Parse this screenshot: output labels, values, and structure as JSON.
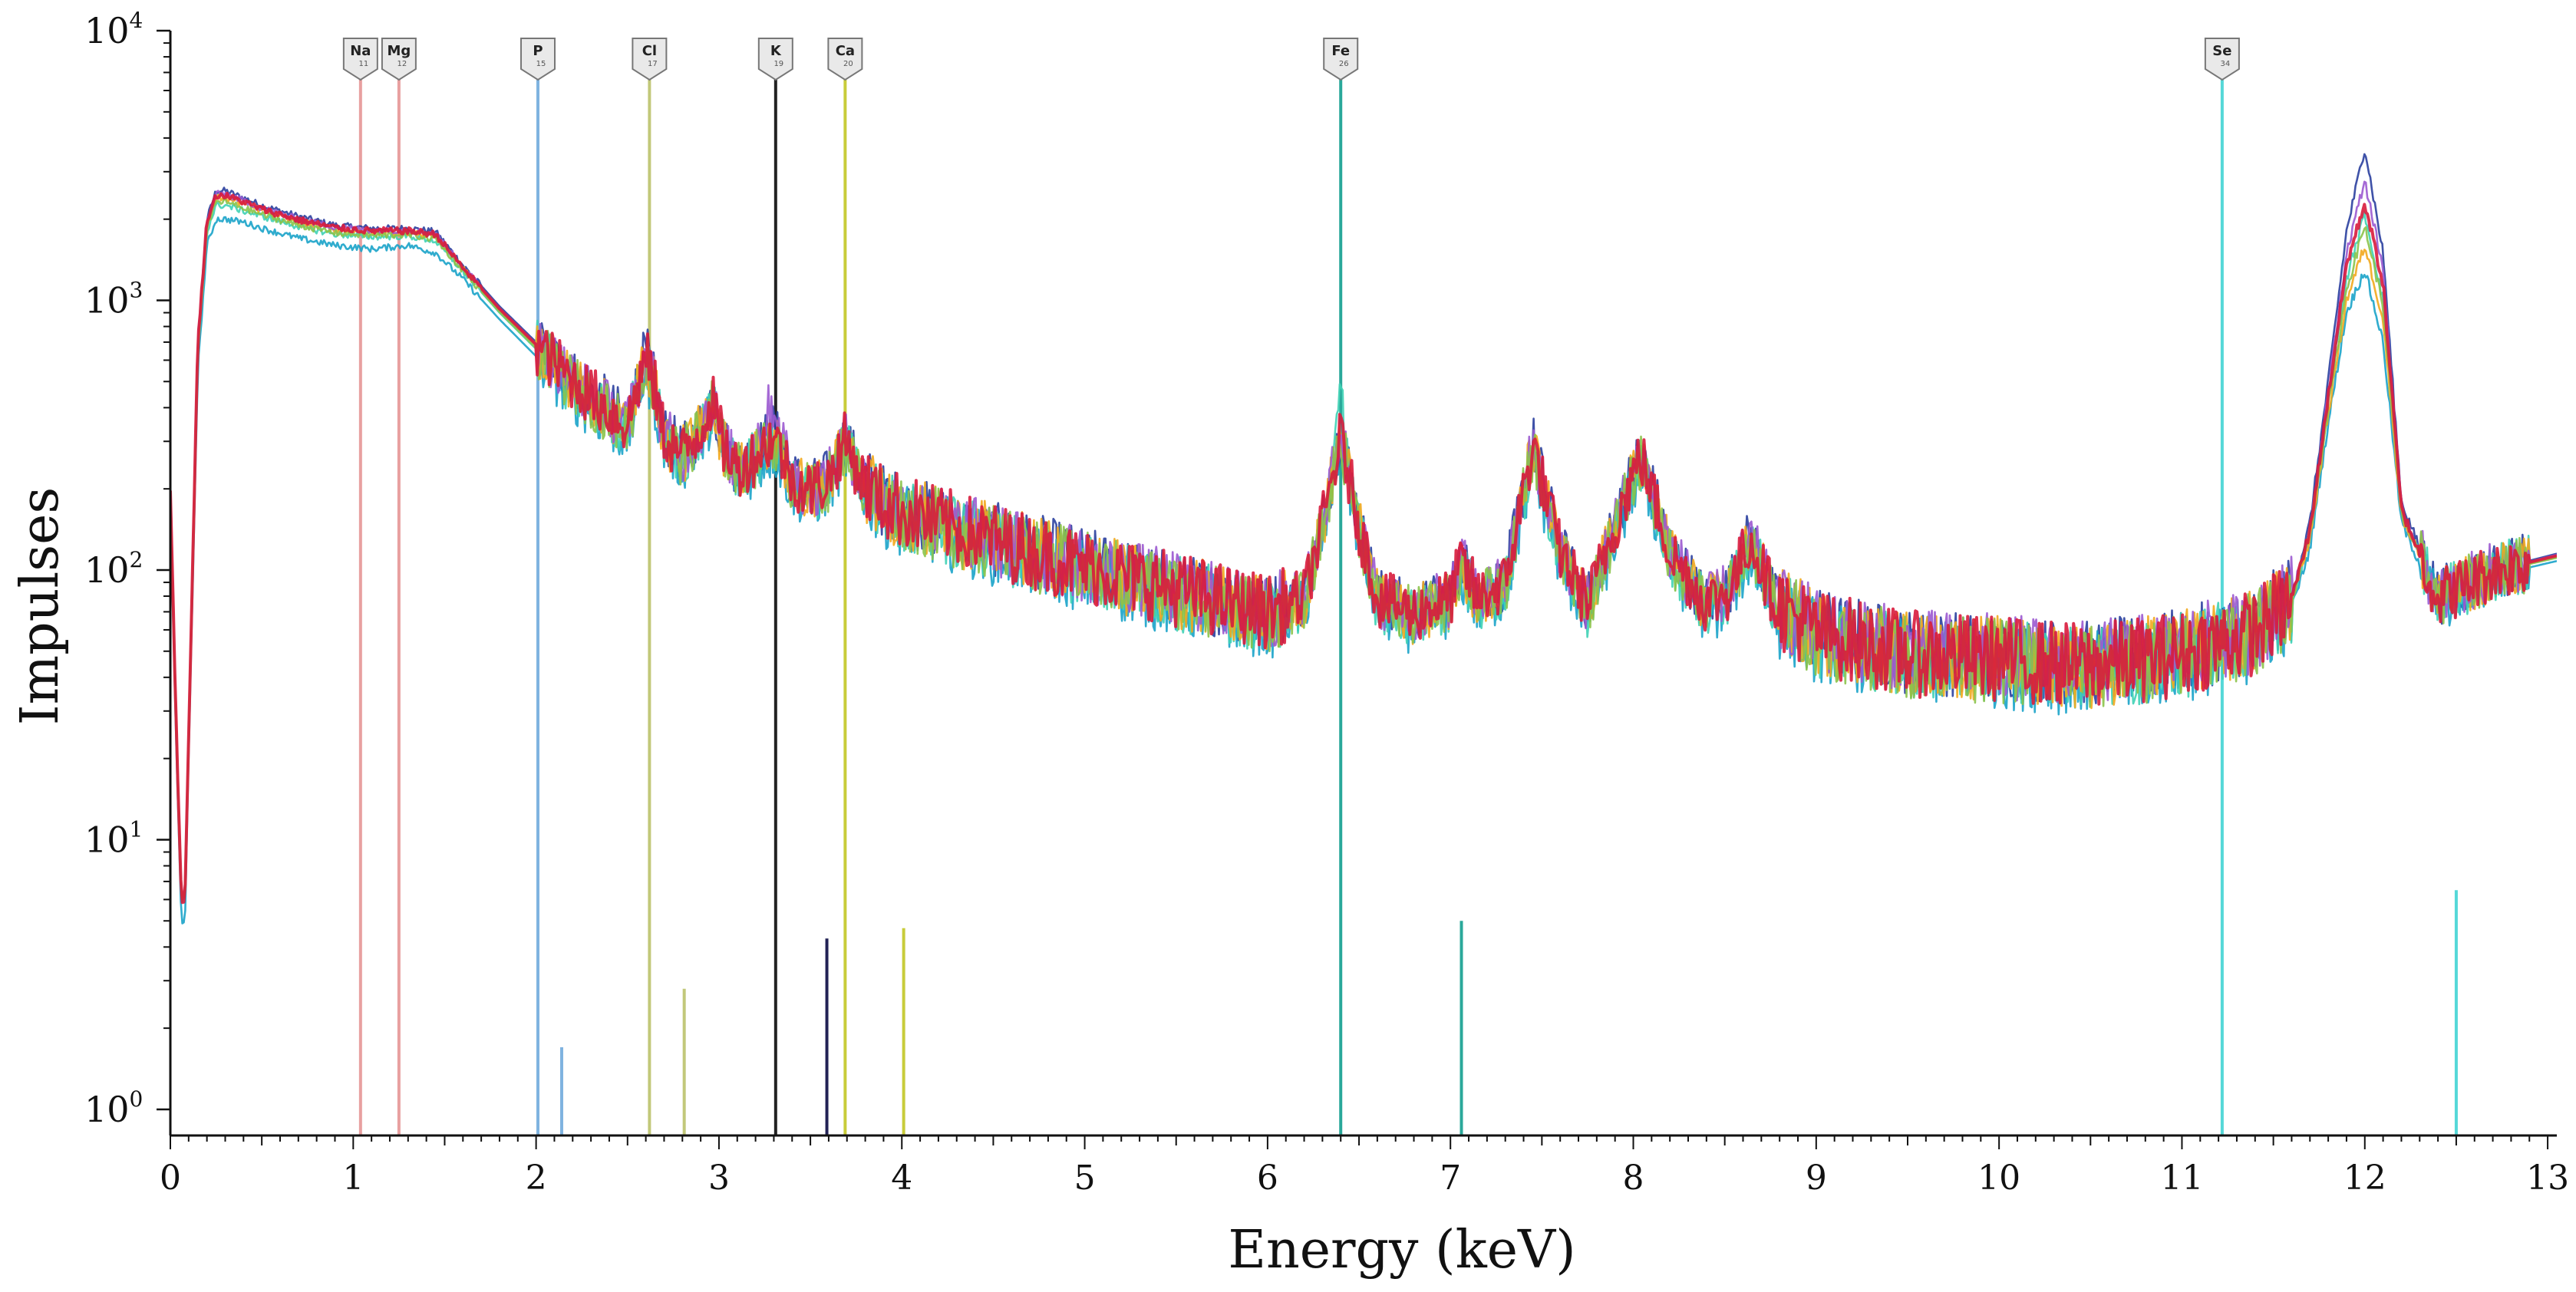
{
  "chart_data": {
    "type": "line",
    "title": "",
    "xlabel": "Energy (keV)",
    "ylabel": "Impulses",
    "xlim": [
      0,
      13.05
    ],
    "ylim": [
      0.8,
      10000
    ],
    "y_scale": "log",
    "grid": false,
    "legend": "none",
    "x_ticks": [
      "0",
      "1",
      "2",
      "3",
      "4",
      "5",
      "6",
      "7",
      "8",
      "9",
      "10",
      "11",
      "12",
      "13"
    ],
    "y_ticks": [
      {
        "value": 1,
        "base": "10",
        "exp": "0"
      },
      {
        "value": 10,
        "base": "10",
        "exp": "1"
      },
      {
        "value": 100,
        "base": "10",
        "exp": "2"
      },
      {
        "value": 1000,
        "base": "10",
        "exp": "3"
      },
      {
        "value": 10000,
        "base": "10",
        "exp": "4"
      }
    ],
    "element_markers": [
      {
        "symbol": "Na",
        "sub": "11",
        "energy": 1.04,
        "color": "#e8a0a0"
      },
      {
        "symbol": "Mg",
        "sub": "12",
        "energy": 1.25,
        "color": "#e8a0a0"
      },
      {
        "symbol": "P",
        "sub": "15",
        "energy": 2.01,
        "color": "#7fb3e0"
      },
      {
        "symbol": "Cl",
        "sub": "17",
        "energy": 2.62,
        "color": "#c2c87a"
      },
      {
        "symbol": "K",
        "sub": "19",
        "energy": 3.31,
        "color": "#222222"
      },
      {
        "symbol": "Ca",
        "sub": "20",
        "energy": 3.69,
        "color": "#c8cc3a"
      },
      {
        "symbol": "Fe",
        "sub": "26",
        "energy": 6.4,
        "color": "#2aa89a"
      },
      {
        "symbol": "Se",
        "sub": "34",
        "energy": 11.22,
        "color": "#55d8d8"
      }
    ],
    "secondary_lines": [
      {
        "energy": 2.14,
        "height": 1.7,
        "color": "#7fb3e0"
      },
      {
        "energy": 2.81,
        "height": 2.8,
        "color": "#c2c87a"
      },
      {
        "energy": 3.59,
        "height": 4.3,
        "color": "#222255"
      },
      {
        "energy": 4.01,
        "height": 4.7,
        "color": "#c8cc3a"
      },
      {
        "energy": 7.06,
        "height": 5.0,
        "color": "#2aa89a"
      },
      {
        "energy": 12.5,
        "height": 6.5,
        "color": "#55d8d8"
      }
    ],
    "spectrum": {
      "x": [
        0.0,
        0.03,
        0.06,
        0.08,
        0.1,
        0.15,
        0.2,
        0.25,
        0.3,
        0.4,
        0.5,
        0.7,
        0.9,
        1.1,
        1.3,
        1.45,
        1.6,
        1.8,
        2.0,
        2.2,
        2.4,
        2.5,
        2.55,
        2.6,
        2.65,
        2.7,
        2.8,
        2.9,
        2.96,
        3.02,
        3.1,
        3.2,
        3.3,
        3.4,
        3.5,
        3.6,
        3.69,
        3.78,
        3.9,
        4.2,
        4.5,
        5.0,
        5.5,
        6.0,
        6.2,
        6.3,
        6.4,
        6.5,
        6.6,
        6.8,
        7.0,
        7.06,
        7.15,
        7.3,
        7.45,
        7.6,
        7.75,
        7.9,
        8.04,
        8.2,
        8.4,
        8.52,
        8.64,
        8.78,
        9.0,
        9.5,
        10.0,
        10.5,
        11.0,
        11.4,
        11.6,
        11.7,
        11.8,
        11.9,
        12.0,
        12.1,
        12.2,
        12.4,
        12.7,
        13.05
      ],
      "series": [
        {
          "name": "",
          "color": "#2a3f9e",
          "values": [
            200,
            30,
            6,
            6,
            25,
            700,
            2000,
            2550,
            2550,
            2400,
            2250,
            2050,
            1900,
            1850,
            1850,
            1800,
            1350,
            950,
            700,
            520,
            400,
            350,
            480,
            650,
            480,
            320,
            270,
            340,
            440,
            300,
            240,
            270,
            330,
            220,
            200,
            220,
            310,
            220,
            180,
            150,
            130,
            105,
            85,
            70,
            80,
            150,
            340,
            150,
            80,
            70,
            80,
            110,
            80,
            90,
            300,
            120,
            75,
            150,
            280,
            120,
            75,
            85,
            135,
            75,
            60,
            50,
            48,
            45,
            50,
            60,
            80,
            150,
            500,
            1800,
            3700,
            1500,
            180,
            80,
            100,
            115
          ]
        },
        {
          "name": "",
          "color": "#1aa3c9",
          "values": [
            180,
            25,
            5,
            5,
            20,
            550,
            1600,
            2000,
            2000,
            1950,
            1850,
            1700,
            1600,
            1550,
            1600,
            1500,
            1200,
            850,
            620,
            450,
            350,
            310,
            420,
            560,
            420,
            290,
            250,
            300,
            380,
            270,
            220,
            240,
            280,
            200,
            180,
            200,
            270,
            200,
            165,
            140,
            120,
            95,
            78,
            64,
            72,
            130,
            300,
            130,
            72,
            62,
            72,
            95,
            72,
            82,
            250,
            105,
            68,
            130,
            240,
            105,
            68,
            76,
            115,
            68,
            55,
            46,
            44,
            41,
            46,
            55,
            72,
            120,
            350,
            900,
            1300,
            700,
            150,
            75,
            95,
            108
          ]
        },
        {
          "name": "",
          "color": "#3fd1b5",
          "values": [
            190,
            28,
            6,
            6,
            22,
            620,
            1800,
            2250,
            2250,
            2150,
            2050,
            1880,
            1760,
            1720,
            1730,
            1660,
            1280,
            900,
            660,
            480,
            375,
            330,
            450,
            600,
            450,
            305,
            260,
            320,
            410,
            285,
            230,
            255,
            300,
            210,
            190,
            210,
            290,
            210,
            172,
            145,
            125,
            100,
            82,
            67,
            76,
            140,
            420,
            140,
            76,
            66,
            76,
            102,
            76,
            86,
            270,
            112,
            72,
            140,
            255,
            112,
            72,
            80,
            125,
            72,
            58,
            48,
            46,
            43,
            48,
            58,
            76,
            135,
            420,
            1200,
            2100,
            1000,
            165,
            78,
            98,
            112
          ]
        },
        {
          "name": "",
          "color": "#f2a81d",
          "values": [
            195,
            29,
            6,
            6,
            23,
            660,
            1900,
            2400,
            2400,
            2280,
            2150,
            1960,
            1830,
            1790,
            1790,
            1730,
            1310,
            920,
            680,
            500,
            385,
            340,
            465,
            620,
            465,
            312,
            265,
            330,
            425,
            292,
            235,
            262,
            315,
            215,
            195,
            215,
            300,
            215,
            176,
            148,
            128,
            102,
            84,
            69,
            78,
            145,
            320,
            145,
            78,
            68,
            78,
            106,
            78,
            88,
            285,
            116,
            74,
            145,
            265,
            116,
            74,
            82,
            130,
            74,
            59,
            49,
            47,
            44,
            49,
            59,
            78,
            130,
            380,
            1000,
            1600,
            850,
            160,
            78,
            98,
            112
          ]
        },
        {
          "name": "",
          "color": "#9b59d0",
          "values": [
            198,
            29,
            6,
            6,
            24,
            680,
            1950,
            2480,
            2480,
            2340,
            2200,
            2000,
            1870,
            1820,
            1820,
            1770,
            1330,
            935,
            690,
            510,
            392,
            345,
            472,
            630,
            472,
            316,
            268,
            335,
            432,
            296,
            238,
            300,
            420,
            218,
            198,
            218,
            305,
            218,
            178,
            150,
            129,
            104,
            85,
            70,
            79,
            148,
            330,
            148,
            79,
            69,
            79,
            108,
            79,
            89,
            292,
            118,
            75,
            148,
            272,
            118,
            75,
            84,
            132,
            75,
            60,
            50,
            48,
            45,
            50,
            60,
            79,
            142,
            460,
            1500,
            2800,
            1300,
            172,
            79,
            99,
            114
          ]
        },
        {
          "name": "",
          "color": "#8bc34a",
          "values": [
            192,
            28,
            6,
            6,
            23,
            640,
            1850,
            2320,
            2320,
            2200,
            2080,
            1900,
            1780,
            1740,
            1750,
            1690,
            1290,
            905,
            665,
            488,
            378,
            334,
            456,
            606,
            456,
            308,
            262,
            325,
            418,
            288,
            232,
            258,
            308,
            212,
            192,
            212,
            295,
            212,
            174,
            146,
            126,
            101,
            83,
            68,
            77,
            142,
            310,
            142,
            77,
            67,
            77,
            104,
            77,
            87,
            278,
            114,
            73,
            142,
            260,
            114,
            73,
            81,
            128,
            73,
            58,
            48,
            46,
            43,
            48,
            58,
            77,
            138,
            400,
            1100,
            1900,
            950,
            162,
            78,
            98,
            111
          ]
        },
        {
          "name": "",
          "color": "#d81b3c",
          "values": [
            200,
            30,
            6,
            6,
            24,
            690,
            1980,
            2450,
            2450,
            2320,
            2180,
            1990,
            1860,
            1810,
            1810,
            1760,
            1320,
            930,
            685,
            505,
            390,
            343,
            468,
            625,
            468,
            314,
            266,
            333,
            430,
            295,
            237,
            264,
            318,
            217,
            197,
            217,
            302,
            217,
            177,
            149,
            129,
            103,
            85,
            70,
            79,
            147,
            310,
            147,
            79,
            69,
            79,
            107,
            79,
            89,
            290,
            117,
            75,
            147,
            268,
            117,
            75,
            83,
            131,
            75,
            59,
            49,
            47,
            44,
            49,
            59,
            78,
            140,
            440,
            1350,
            2300,
            1150,
            168,
            79,
            99,
            113
          ]
        }
      ]
    }
  }
}
